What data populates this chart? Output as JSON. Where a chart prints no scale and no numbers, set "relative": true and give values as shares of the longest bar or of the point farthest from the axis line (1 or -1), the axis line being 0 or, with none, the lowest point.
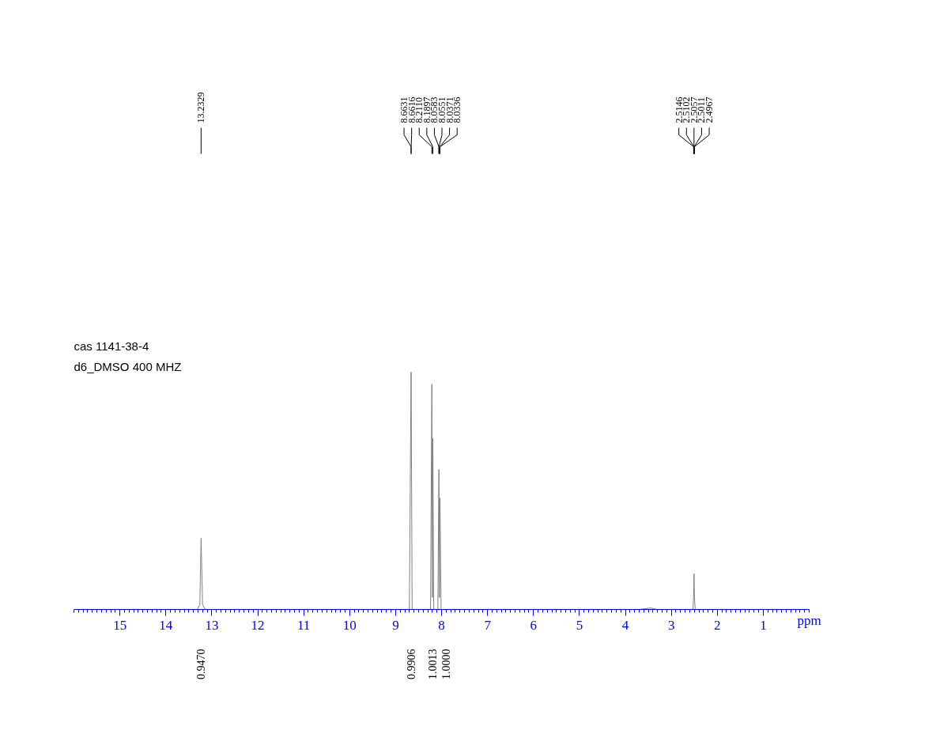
{
  "chart_data": {
    "type": "line",
    "relative": true,
    "xlabel": "ppm",
    "xlim": [
      16,
      0
    ],
    "xticks": [
      1,
      2,
      3,
      4,
      5,
      6,
      7,
      8,
      9,
      10,
      11,
      12,
      13,
      14,
      15
    ],
    "grid": false,
    "series": [
      {
        "color": "#808080",
        "x": [
          16,
          13.32,
          13.26,
          13.2329,
          13.2,
          13.14,
          8.7,
          8.6631,
          8.6616,
          8.64,
          8.24,
          8.211,
          8.2,
          8.1897,
          8.17,
          8.08,
          8.0583,
          8.0551,
          8.046,
          8.0371,
          8.0336,
          8.01,
          3.7,
          3.45,
          3.3,
          2.53,
          2.5146,
          2.5102,
          2.5057,
          2.5011,
          2.4967,
          2.48,
          0
        ],
        "values": [
          0,
          0,
          0.02,
          0.3,
          0.02,
          0,
          0,
          1.0,
          0.98,
          0,
          0,
          0.95,
          0.05,
          0.72,
          0,
          0,
          0.59,
          0.58,
          0.05,
          0.47,
          0.46,
          0,
          0,
          0.006,
          0,
          0,
          0.05,
          0.1,
          0.15,
          0.1,
          0.05,
          0,
          0
        ]
      }
    ],
    "annotations": [
      "cas 1141-38-4",
      "d6_DMSO 400 MHZ",
      {
        "text": "13.2329",
        "x": 13.2329
      },
      {
        "text": "8.6631",
        "x": 8.6631
      },
      {
        "text": "8.6616",
        "x": 8.6616
      },
      {
        "text": "8.2110",
        "x": 8.211
      },
      {
        "text": "8.1897",
        "x": 8.1897
      },
      {
        "text": "8.0583",
        "x": 8.0583
      },
      {
        "text": "8.0551",
        "x": 8.0551
      },
      {
        "text": "8.0371",
        "x": 8.0371
      },
      {
        "text": "8.0336",
        "x": 8.0336
      },
      {
        "text": "2.5146",
        "x": 2.5146
      },
      {
        "text": "2.5102",
        "x": 2.5102
      },
      {
        "text": "2.5057",
        "x": 2.5057
      },
      {
        "text": "2.5011",
        "x": 2.5011
      },
      {
        "text": "2.4967",
        "x": 2.4967
      },
      "0.9470",
      "0.9906",
      "1.0013",
      "1.0000"
    ]
  }
}
